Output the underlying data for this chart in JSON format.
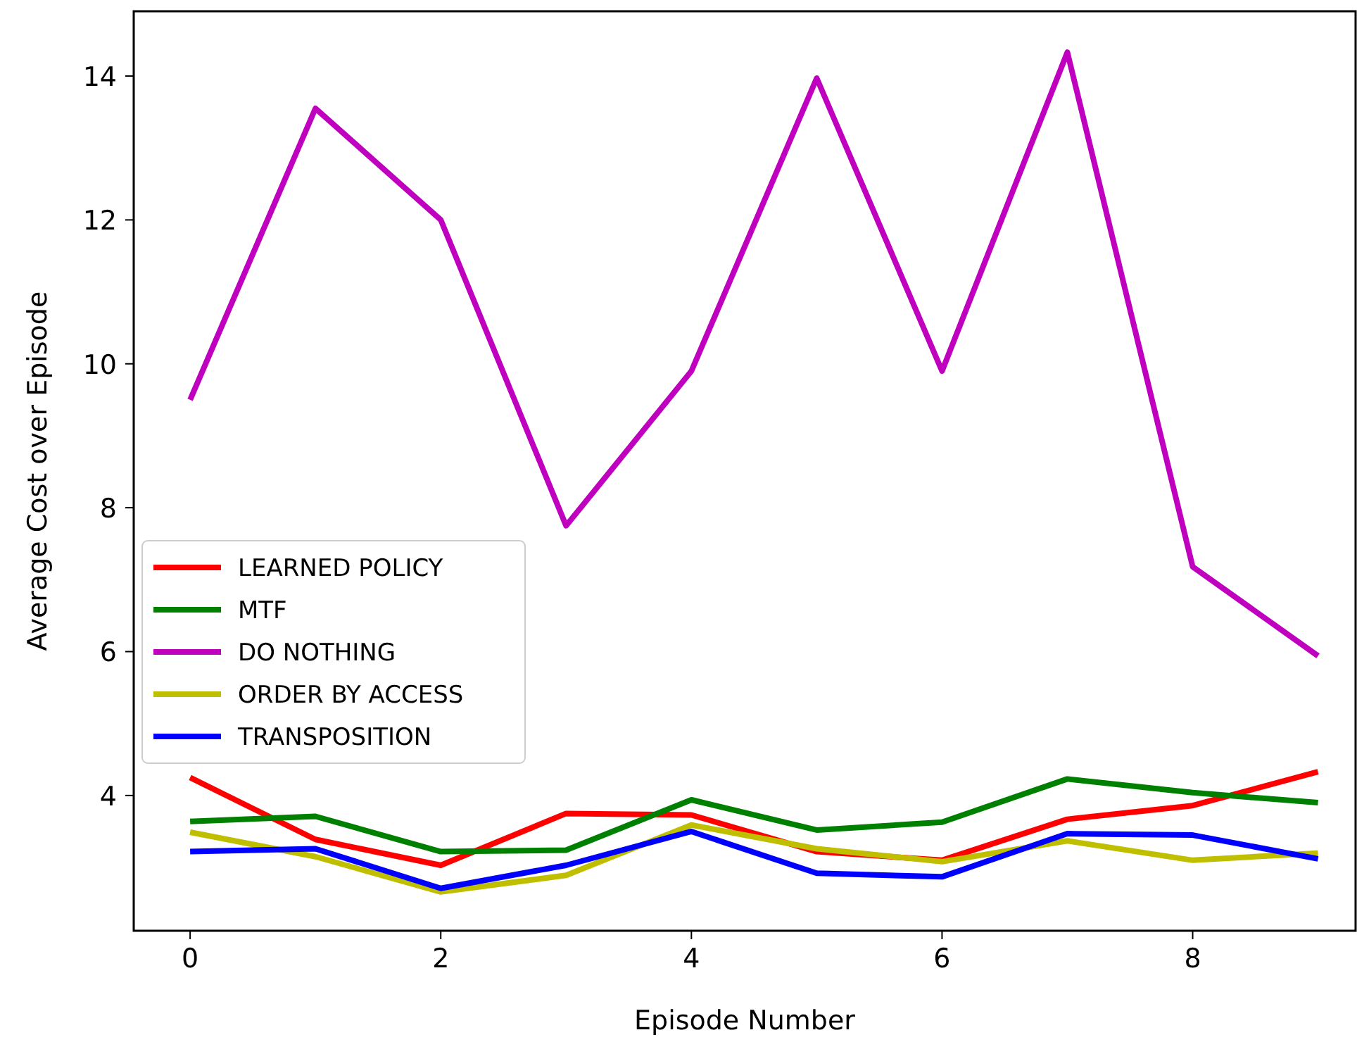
{
  "chart_data": {
    "type": "line",
    "xlabel": "Episode Number",
    "ylabel": "Average Cost over Episode",
    "x": [
      0,
      1,
      2,
      3,
      4,
      5,
      6,
      7,
      8,
      9
    ],
    "xlim": [
      -0.45,
      9.3
    ],
    "ylim": [
      2.12,
      14.9
    ],
    "xticks": [
      0,
      2,
      4,
      6,
      8
    ],
    "yticks": [
      4,
      6,
      8,
      10,
      12,
      14
    ],
    "legend": "center left",
    "grid": false,
    "series": [
      {
        "name": "LEARNED POLICY",
        "color": "#ff0000",
        "values": [
          4.25,
          3.39,
          3.03,
          3.75,
          3.73,
          3.22,
          3.1,
          3.67,
          3.86,
          4.33
        ]
      },
      {
        "name": "MTF",
        "color": "#008000",
        "values": [
          3.64,
          3.71,
          3.22,
          3.24,
          3.94,
          3.52,
          3.63,
          4.23,
          4.04,
          3.9
        ]
      },
      {
        "name": "DO NOTHING",
        "color": "#bf00bf",
        "values": [
          9.5,
          13.55,
          12.0,
          7.75,
          9.9,
          13.97,
          9.9,
          14.33,
          7.18,
          5.94
        ]
      },
      {
        "name": "ORDER BY ACCESS",
        "color": "#bfbf00",
        "values": [
          3.49,
          3.15,
          2.66,
          2.89,
          3.59,
          3.26,
          3.08,
          3.37,
          3.1,
          3.2
        ]
      },
      {
        "name": "TRANSPOSITION",
        "color": "#0000ff",
        "values": [
          3.22,
          3.26,
          2.71,
          3.03,
          3.5,
          2.92,
          2.87,
          3.47,
          3.45,
          3.12
        ]
      }
    ]
  }
}
